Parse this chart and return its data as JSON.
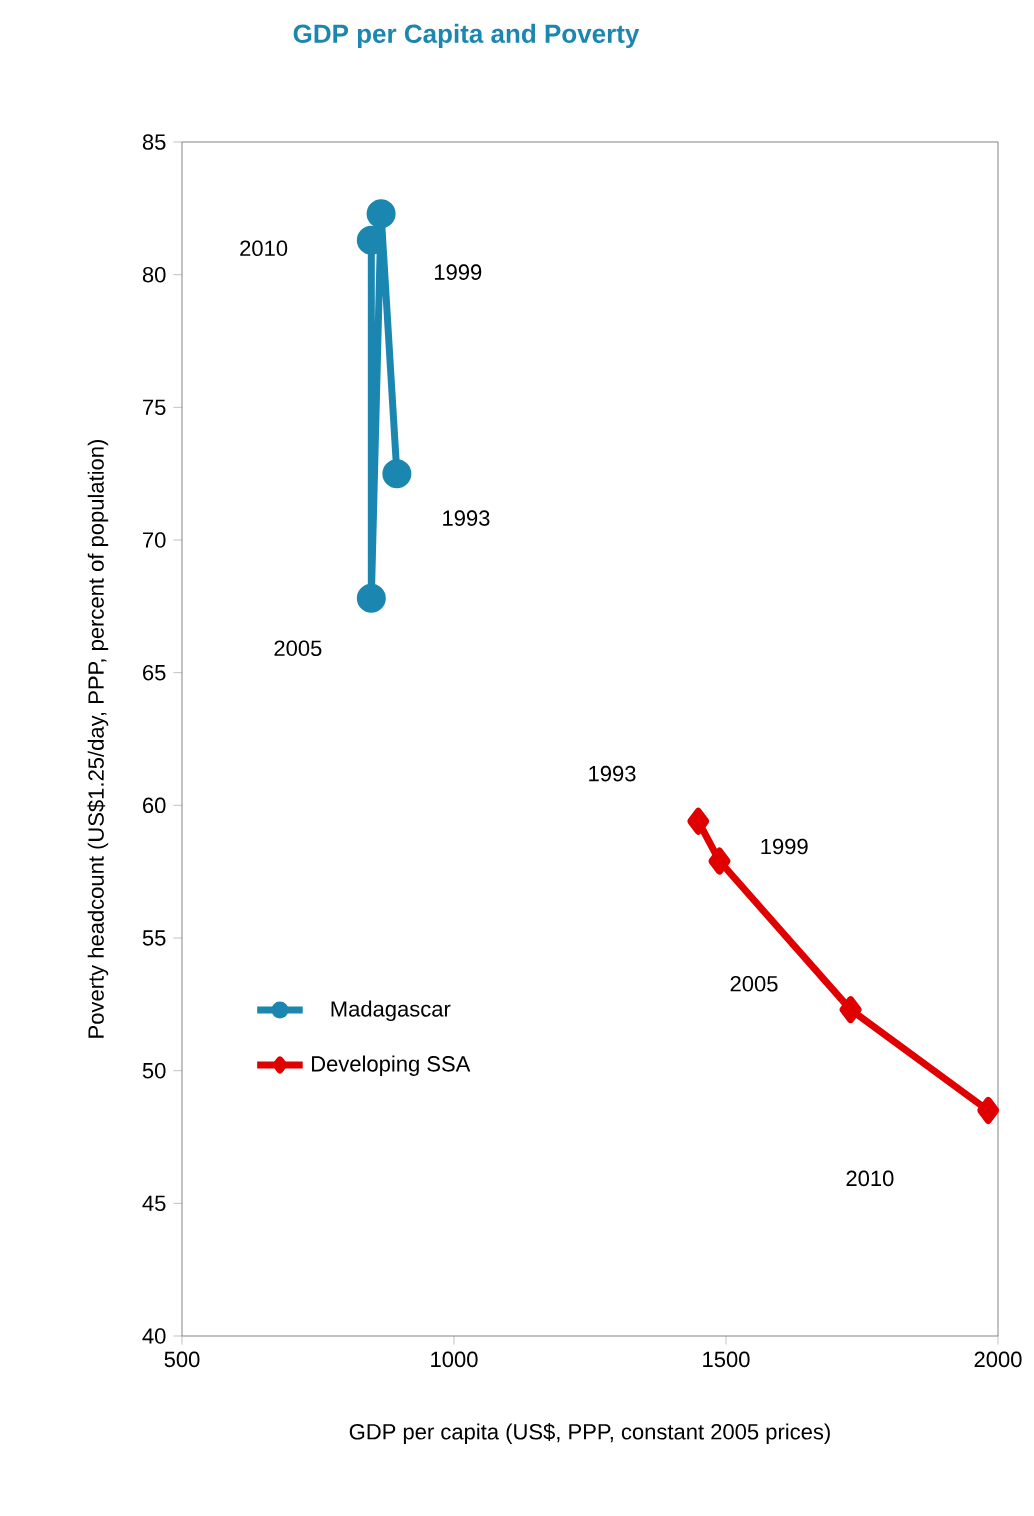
{
  "chart_data": {
    "type": "line",
    "title": "GDP per Capita and Poverty",
    "xlabel": "GDP per capita (US$, PPP, constant 2005 prices)",
    "ylabel": "Poverty headcount (US$1.25/day, PPP, percent of population)",
    "xlim": [
      500,
      2000
    ],
    "xticks": [
      500,
      1000,
      1500,
      2000
    ],
    "ylim": [
      40,
      85
    ],
    "yticks": [
      40,
      45,
      50,
      55,
      60,
      65,
      70,
      75,
      80,
      85
    ],
    "grid": false,
    "legend": "left",
    "line_style": "solid",
    "series": [
      {
        "name": "Madagascar",
        "color": "#1b87b0",
        "marker": "circle",
        "x": [
          895,
          866,
          848,
          848
        ],
        "values": [
          72.5,
          82.3,
          67.8,
          81.3
        ]
      },
      {
        "name": "Developing SSA",
        "color": "#e00000",
        "marker": "diamond",
        "x": [
          1449,
          1488,
          1729,
          1982
        ],
        "values": [
          59.4,
          57.9,
          52.3,
          48.5
        ]
      }
    ],
    "annotations": [
      "1993",
      "1999",
      "2005",
      "2010",
      "1993",
      "1999",
      "2005",
      "2010"
    ]
  }
}
